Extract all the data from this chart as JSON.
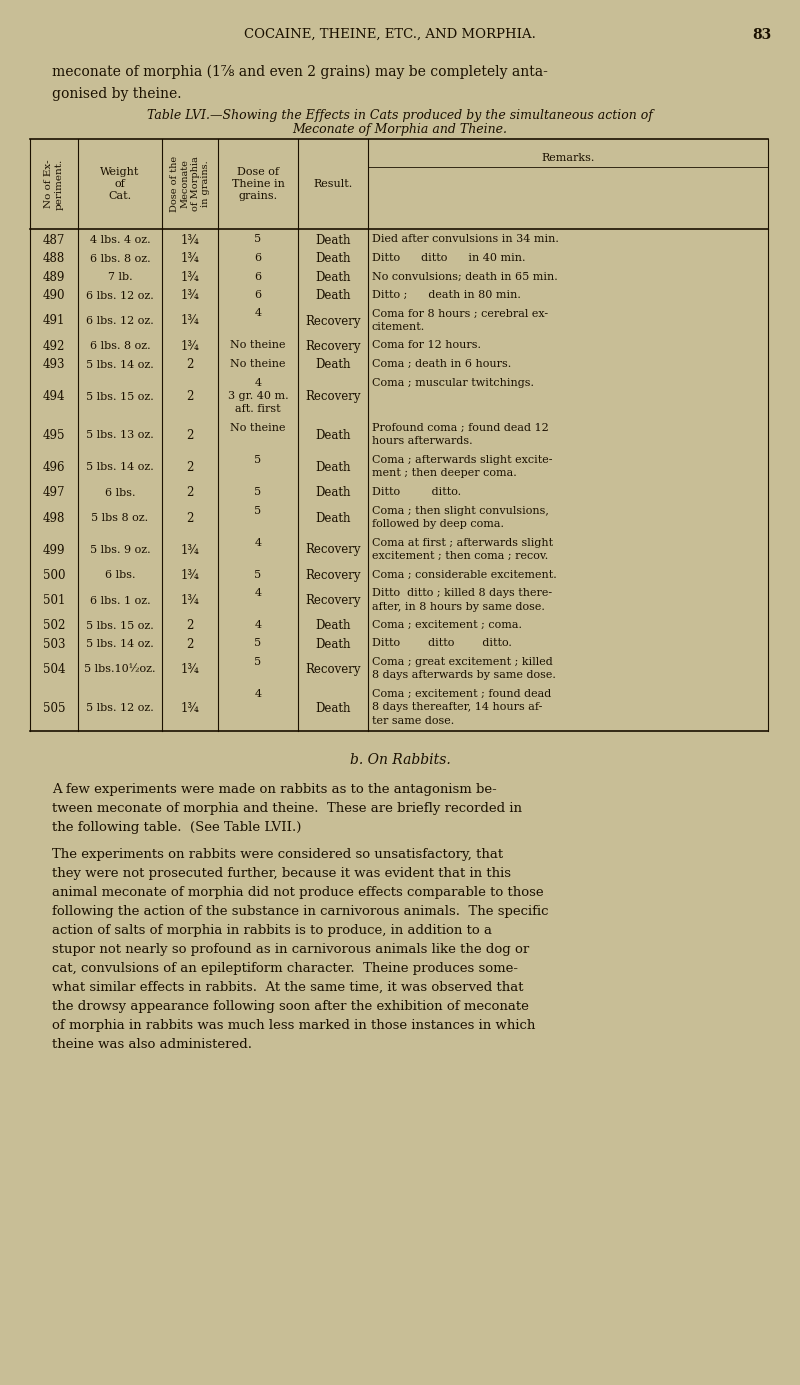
{
  "bg_color": "#c8be96",
  "page_header": "COCAINE, THEINE, ETC., AND MORPHIA.",
  "page_number": "83",
  "intro_line1": "meconate of morphia (1⅞ and even 2 grains) may be completely anta-",
  "intro_line2": "gonised by theine.",
  "table_title1": "Table LVI.—Showing the Effects in Cats produced by the simultaneous action of",
  "table_title2": "Meconate of Morphia and Theine.",
  "rows": [
    [
      "487",
      "4 lbs. 4 oz.",
      "1¾",
      "5",
      "Death",
      "Died after convulsions in 34 min."
    ],
    [
      "488",
      "6 lbs. 8 oz.",
      "1¾",
      "6",
      "Death",
      "Ditto      ditto      in 40 min."
    ],
    [
      "489",
      "7 lb.",
      "1¾",
      "6",
      "Death",
      "No convulsions; death in 65 min."
    ],
    [
      "490",
      "6 lbs. 12 oz.",
      "1¾",
      "6",
      "Death",
      "Ditto ;      death in 80 min."
    ],
    [
      "491",
      "6 lbs. 12 oz.",
      "1¾",
      "4",
      "Recovery",
      "Coma for 8 hours ; cerebral ex-\ncitement."
    ],
    [
      "492",
      "6 lbs. 8 oz.",
      "1¾",
      "No theine",
      "Recovery",
      "Coma for 12 hours."
    ],
    [
      "493",
      "5 lbs. 14 oz.",
      "2",
      "No theine",
      "Death",
      "Coma ; death in 6 hours."
    ],
    [
      "494",
      "5 lbs. 15 oz.",
      "2",
      "4\n3 gr. 40 m.\naft. first",
      "Recovery",
      "Coma ; muscular twitchings."
    ],
    [
      "495",
      "5 lbs. 13 oz.",
      "2",
      "No theine",
      "Death",
      "Profound coma ; found dead 12\nhours afterwards."
    ],
    [
      "496",
      "5 lbs. 14 oz.",
      "2",
      "5",
      "Death",
      "Coma ; afterwards slight excite-\nment ; then deeper coma."
    ],
    [
      "497",
      "6 lbs.",
      "2",
      "5",
      "Death",
      "Ditto         ditto."
    ],
    [
      "498",
      "5 lbs 8 oz.",
      "2",
      "5",
      "Death",
      "Coma ; then slight convulsions,\nfollowed by deep coma."
    ],
    [
      "499",
      "5 lbs. 9 oz.",
      "1¾",
      "4",
      "Recovery",
      "Coma at first ; afterwards slight\nexcitement ; then coma ; recov."
    ],
    [
      "500",
      "6 lbs.",
      "1¾",
      "5",
      "Recovery",
      "Coma ; considerable excitement."
    ],
    [
      "501",
      "6 lbs. 1 oz.",
      "1¾",
      "4",
      "Recovery",
      "Ditto  ditto ; killed 8 days there-\nafter, in 8 hours by same dose."
    ],
    [
      "502",
      "5 lbs. 15 oz.",
      "2",
      "4",
      "Death",
      "Coma ; excitement ; coma."
    ],
    [
      "503",
      "5 lbs. 14 oz.",
      "2",
      "5",
      "Death",
      "Ditto        ditto        ditto."
    ],
    [
      "504",
      "5 lbs.10½oz.",
      "1¾",
      "5",
      "Recovery",
      "Coma ; great excitement ; killed\n8 days afterwards by same dose."
    ],
    [
      "505",
      "5 lbs. 12 oz.",
      "1¾",
      "4",
      "Death",
      "Coma ; excitement ; found dead\n8 days thereafter, 14 hours af-\nter same dose."
    ]
  ],
  "rabbits_heading": "b. On Rabbits.",
  "para1_lines": [
    "A few experiments were made on rabbits as to the antagonism be-",
    "tween meconate of morphia and theine.  These are briefly recorded in",
    "the following table.  (See Table LVII.)"
  ],
  "para2_lines": [
    "The experiments on rabbits were considered so unsatisfactory, that",
    "they were not prosecuted further, because it was evident that in this",
    "animal meconate of morphia did not produce effects comparable to those",
    "following the action of the substance in carnivorous animals.  The specific",
    "action of salts of morphia in rabbits is to produce, in addition to a",
    "stupor not nearly so profound as in carnivorous animals like the dog or",
    "cat, convulsions of an epileptiform character.  Theine produces some-",
    "what similar effects in rabbits.  At the same time, it was observed that",
    "the drowsy appearance following soon after the exhibition of meconate",
    "of morphia in rabbits was much less marked in those instances in which",
    "theine was also administered."
  ]
}
